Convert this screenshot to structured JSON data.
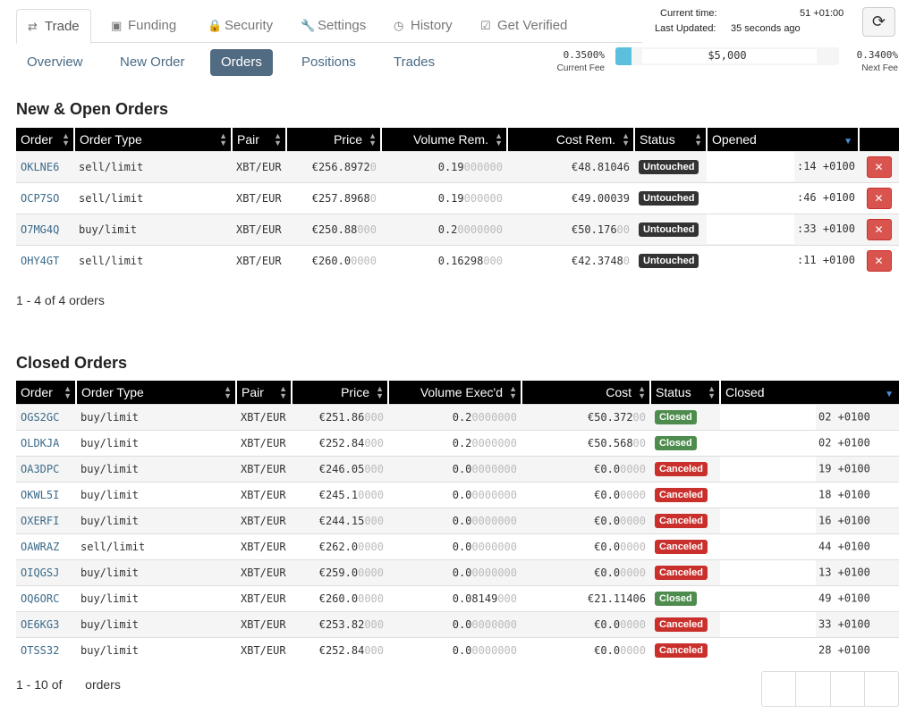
{
  "top_tabs": [
    {
      "label": "Trade",
      "icon": "trade-arrows-icon",
      "glyph": "⇄",
      "active": true
    },
    {
      "label": "Funding",
      "icon": "money-icon",
      "glyph": "▣",
      "active": false
    },
    {
      "label": "Security",
      "icon": "lock-icon",
      "glyph": "🔒",
      "active": false
    },
    {
      "label": "Settings",
      "icon": "wrench-icon",
      "glyph": "🔧",
      "active": false
    },
    {
      "label": "History",
      "icon": "clock-icon",
      "glyph": "◷",
      "active": false
    },
    {
      "label": "Get Verified",
      "icon": "check-square-icon",
      "glyph": "☑",
      "active": false
    }
  ],
  "status": {
    "current_time_label": "Current time:",
    "current_time_value": "51 +01:00",
    "last_updated_label": "Last Updated:",
    "last_updated_value": "35 seconds ago"
  },
  "sub_tabs": [
    {
      "label": "Overview",
      "active": false
    },
    {
      "label": "New Order",
      "active": false
    },
    {
      "label": "Orders",
      "active": true
    },
    {
      "label": "Positions",
      "active": false
    },
    {
      "label": "Trades",
      "active": false
    }
  ],
  "fee": {
    "current": "0.3500%",
    "current_caption": "Current Fee",
    "bar_text": "$5,000",
    "progress_fraction": 0.07,
    "next": "0.3400%",
    "next_caption": "Next Fee",
    "bar_color": "#5bc0de"
  },
  "open_orders": {
    "title": "New & Open Orders",
    "columns": [
      "Order",
      "Order Type",
      "Pair",
      "Price",
      "Volume Rem.",
      "Cost Rem.",
      "Status",
      "Opened"
    ],
    "rows": [
      {
        "order": "OKLNE6",
        "type": "sell/limit",
        "pair": "XBT/EUR",
        "price": "€256.8972",
        "price_dim": "0",
        "vol": "0.19",
        "vol_dim": "000000",
        "cost": "€48.81046",
        "cost_dim": "",
        "status": "Untouched",
        "opened": ":14 +0100"
      },
      {
        "order": "OCP7SO",
        "type": "sell/limit",
        "pair": "XBT/EUR",
        "price": "€257.8968",
        "price_dim": "0",
        "vol": "0.19",
        "vol_dim": "000000",
        "cost": "€49.00039",
        "cost_dim": "",
        "status": "Untouched",
        "opened": ":46 +0100"
      },
      {
        "order": "O7MG4Q",
        "type": "buy/limit",
        "pair": "XBT/EUR",
        "price": "€250.88",
        "price_dim": "000",
        "vol": "0.2",
        "vol_dim": "0000000",
        "cost": "€50.176",
        "cost_dim": "00",
        "status": "Untouched",
        "opened": ":33 +0100"
      },
      {
        "order": "OHY4GT",
        "type": "sell/limit",
        "pair": "XBT/EUR",
        "price": "€260.0",
        "price_dim": "0000",
        "vol": "0.16298",
        "vol_dim": "000",
        "cost": "€42.3748",
        "cost_dim": "0",
        "status": "Untouched",
        "opened": ":11 +0100"
      }
    ],
    "count_text": "1 - 4 of 4 orders"
  },
  "closed_orders": {
    "title": "Closed Orders",
    "columns": [
      "Order",
      "Order Type",
      "Pair",
      "Price",
      "Volume Exec'd",
      "Cost",
      "Status",
      "Closed"
    ],
    "rows": [
      {
        "order": "OGS2GC",
        "type": "buy/limit",
        "pair": "XBT/EUR",
        "price": "€251.86",
        "price_dim": "000",
        "vol": "0.2",
        "vol_dim": "0000000",
        "cost": "€50.372",
        "cost_dim": "00",
        "status": "Closed",
        "closed": "02 +0100"
      },
      {
        "order": "OLDKJA",
        "type": "buy/limit",
        "pair": "XBT/EUR",
        "price": "€252.84",
        "price_dim": "000",
        "vol": "0.2",
        "vol_dim": "0000000",
        "cost": "€50.568",
        "cost_dim": "00",
        "status": "Closed",
        "closed": "02 +0100"
      },
      {
        "order": "OA3DPC",
        "type": "buy/limit",
        "pair": "XBT/EUR",
        "price": "€246.05",
        "price_dim": "000",
        "vol": "0.0",
        "vol_dim": "0000000",
        "cost": "€0.0",
        "cost_dim": "0000",
        "status": "Canceled",
        "closed": "19 +0100"
      },
      {
        "order": "OKWL5I",
        "type": "buy/limit",
        "pair": "XBT/EUR",
        "price": "€245.1",
        "price_dim": "0000",
        "vol": "0.0",
        "vol_dim": "0000000",
        "cost": "€0.0",
        "cost_dim": "0000",
        "status": "Canceled",
        "closed": "18 +0100"
      },
      {
        "order": "OXERFI",
        "type": "buy/limit",
        "pair": "XBT/EUR",
        "price": "€244.15",
        "price_dim": "000",
        "vol": "0.0",
        "vol_dim": "0000000",
        "cost": "€0.0",
        "cost_dim": "0000",
        "status": "Canceled",
        "closed": "16 +0100"
      },
      {
        "order": "OAWRAZ",
        "type": "sell/limit",
        "pair": "XBT/EUR",
        "price": "€262.0",
        "price_dim": "0000",
        "vol": "0.0",
        "vol_dim": "0000000",
        "cost": "€0.0",
        "cost_dim": "0000",
        "status": "Canceled",
        "closed": "44 +0100"
      },
      {
        "order": "OIQGSJ",
        "type": "buy/limit",
        "pair": "XBT/EUR",
        "price": "€259.0",
        "price_dim": "0000",
        "vol": "0.0",
        "vol_dim": "0000000",
        "cost": "€0.0",
        "cost_dim": "0000",
        "status": "Canceled",
        "closed": "13 +0100"
      },
      {
        "order": "OQ6ORC",
        "type": "buy/limit",
        "pair": "XBT/EUR",
        "price": "€260.0",
        "price_dim": "0000",
        "vol": "0.08149",
        "vol_dim": "000",
        "cost": "€21.11406",
        "cost_dim": "",
        "status": "Closed",
        "closed": "49 +0100"
      },
      {
        "order": "OE6KG3",
        "type": "buy/limit",
        "pair": "XBT/EUR",
        "price": "€253.82",
        "price_dim": "000",
        "vol": "0.0",
        "vol_dim": "0000000",
        "cost": "€0.0",
        "cost_dim": "0000",
        "status": "Canceled",
        "closed": "33 +0100"
      },
      {
        "order": "OTSS32",
        "type": "buy/limit",
        "pair": "XBT/EUR",
        "price": "€252.84",
        "price_dim": "000",
        "vol": "0.0",
        "vol_dim": "0000000",
        "cost": "€0.0",
        "cost_dim": "0000",
        "status": "Canceled",
        "closed": "28 +0100"
      }
    ],
    "count_prefix": "1 - 10 of",
    "count_suffix": "orders"
  },
  "colors": {
    "header_bg": "#000000",
    "active_subtab": "#516b82",
    "untouched": "#333333",
    "closed": "#4e8c4e",
    "canceled": "#c9302c",
    "cancel_button": "#d9534f"
  },
  "icons": {
    "refresh": "refresh-icon",
    "cancel": "close-icon"
  }
}
